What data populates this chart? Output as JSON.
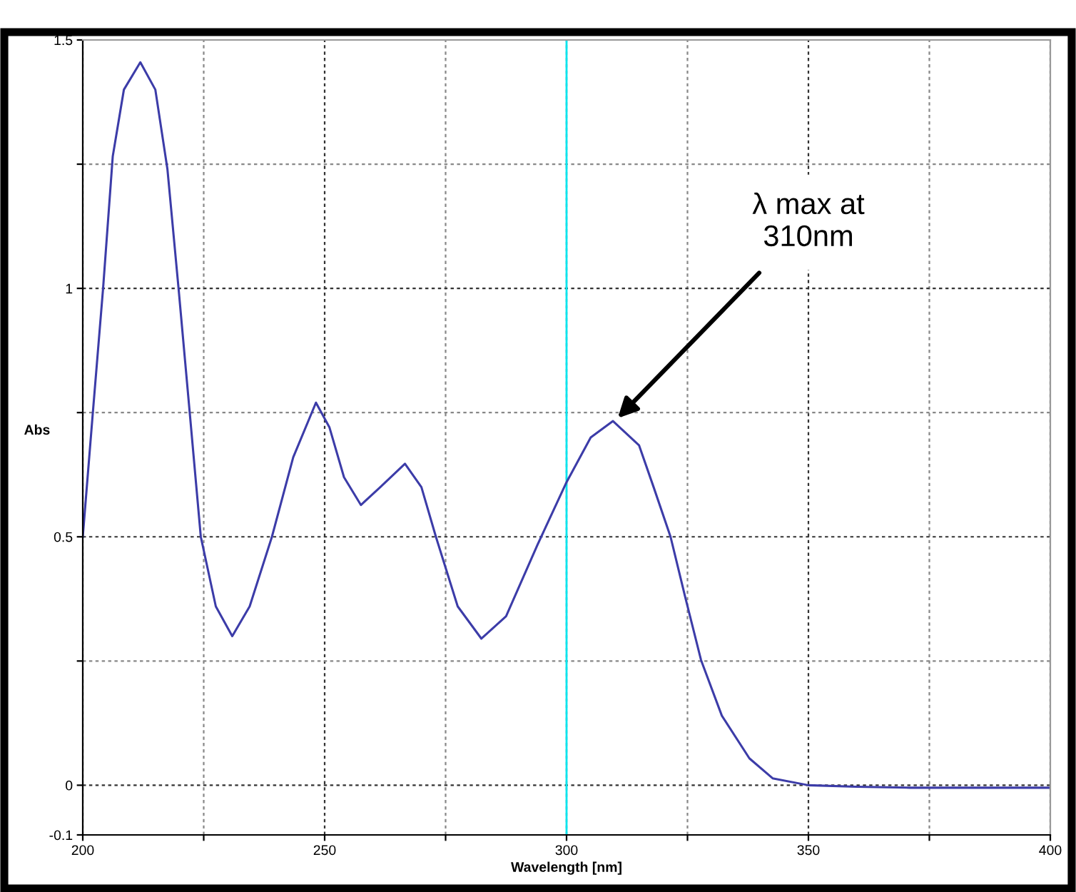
{
  "chart_data": {
    "type": "line",
    "xlabel": "Wavelength [nm]",
    "ylabel": "Abs",
    "x": [
      200,
      202,
      204.2,
      206.2,
      208.5,
      211.9,
      215,
      217.5,
      219.8,
      222.2,
      224.4,
      227.5,
      230.9,
      234.5,
      239.1,
      243.5,
      248.2,
      251,
      254,
      257.5,
      261.5,
      266.6,
      270,
      273,
      277.5,
      282.4,
      287.5,
      294,
      300,
      305,
      309.6,
      315,
      318,
      321.5,
      324.5,
      327.8,
      332.1,
      337.8,
      342.6,
      350,
      360,
      371,
      385,
      400
    ],
    "series": [
      {
        "color": "#3c3ca8",
        "values": [
          0.5,
          0.74,
          1.0,
          1.266,
          1.4,
          1.455,
          1.4,
          1.24,
          1.0,
          0.74,
          0.5,
          0.36,
          0.3,
          0.36,
          0.5,
          0.66,
          0.77,
          0.72,
          0.62,
          0.564,
          0.6,
          0.647,
          0.6,
          0.5,
          0.36,
          0.295,
          0.34,
          0.484,
          0.61,
          0.7,
          0.733,
          0.684,
          0.6,
          0.5,
          0.38,
          0.252,
          0.14,
          0.054,
          0.014,
          0.0,
          -0.003,
          -0.005,
          -0.005,
          -0.005
        ]
      }
    ],
    "xlim": [
      200,
      400
    ],
    "ylim": [
      -0.1,
      1.5
    ],
    "xticks": [
      200,
      {
        "value": 225,
        "label": null
      },
      250,
      {
        "value": 275,
        "label": null
      },
      300,
      {
        "value": 325,
        "label": null
      },
      350,
      {
        "value": 375,
        "label": null
      },
      400
    ],
    "yticks": [
      -0.1,
      0,
      {
        "value": 0.25,
        "label": null
      },
      0.5,
      {
        "value": 0.75,
        "label": null
      },
      1,
      {
        "value": 1.25,
        "label": null
      },
      1.5
    ],
    "grid": true,
    "marker": "none",
    "line_style": "solid",
    "ref_lines": [
      {
        "axis": "x",
        "value": 300,
        "color": "#00e5ee",
        "line_style": "solid"
      }
    ],
    "annotations": [
      {
        "text": "λ max at\n310nm",
        "x": 310,
        "y": 0.733
      }
    ]
  }
}
